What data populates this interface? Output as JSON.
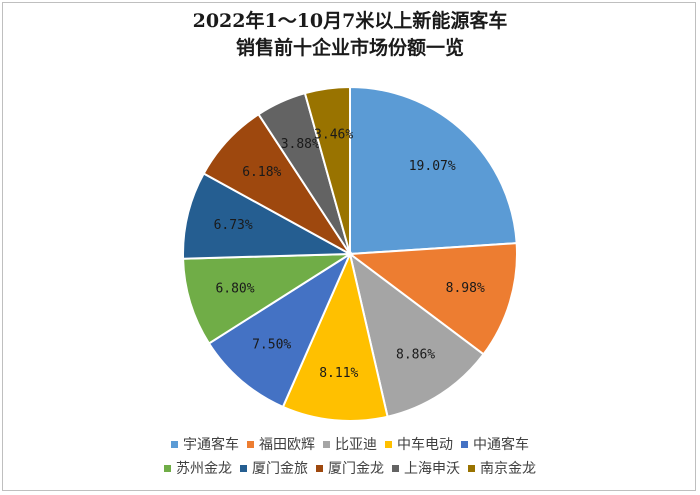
{
  "chart_data": {
    "type": "pie",
    "title_lines": [
      "2022年1～10月7米以上新能源客车",
      "销售前十企业市场份额一览"
    ],
    "categories": [
      "宇通客车",
      "福田欧辉",
      "比亚迪",
      "中车电动",
      "中通客车",
      "苏州金龙",
      "厦门金旅",
      "厦门金龙",
      "上海申沃",
      "南京金龙"
    ],
    "values": [
      19.07,
      8.98,
      8.86,
      8.11,
      7.5,
      6.8,
      6.73,
      6.18,
      3.88,
      3.46
    ],
    "labels": [
      "19.07%",
      "8.98%",
      "8.86%",
      "8.11%",
      "7.50%",
      "6.80%",
      "6.73%",
      "6.18%",
      "3.88%",
      "3.46%"
    ],
    "colors": [
      "#5b9bd5",
      "#ed7d31",
      "#a5a5a5",
      "#ffc000",
      "#4472c4",
      "#70ad47",
      "#255e91",
      "#9e480e",
      "#636363",
      "#997300"
    ],
    "legend_position": "bottom",
    "legend_rows": [
      [
        0,
        1,
        2,
        3,
        4
      ],
      [
        5,
        6,
        7,
        8,
        9
      ]
    ]
  }
}
